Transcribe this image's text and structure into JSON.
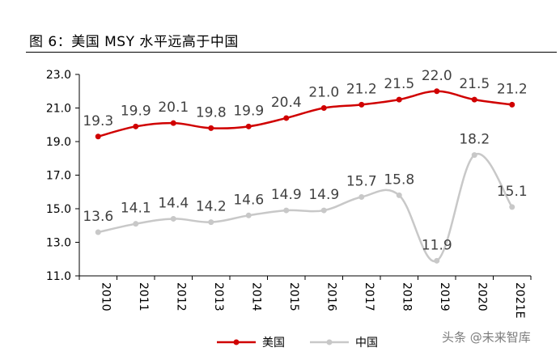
{
  "figure": {
    "title": "图 6：美国 MSY 水平远高于中国",
    "watermark": "头条 @未来智库"
  },
  "chart_data": {
    "type": "line",
    "title": "图 6：美国 MSY 水平远高于中国",
    "categories": [
      "2010",
      "2011",
      "2012",
      "2013",
      "2014",
      "2015",
      "2016",
      "2017",
      "2018",
      "2019",
      "2020",
      "2021E"
    ],
    "series": [
      {
        "name": "美国",
        "color": "#d00000",
        "values": [
          19.3,
          19.9,
          20.1,
          19.8,
          19.9,
          20.4,
          21.0,
          21.2,
          21.5,
          22.0,
          21.5,
          21.2
        ],
        "labels": [
          "19.3",
          "19.9",
          "20.1",
          "19.8",
          "19.9",
          "20.4",
          "21.0",
          "21.2",
          "21.5",
          "22.0",
          "21.5",
          "21.2"
        ]
      },
      {
        "name": "中国",
        "color": "#c8c8c8",
        "values": [
          13.6,
          14.1,
          14.4,
          14.2,
          14.6,
          14.9,
          14.9,
          15.7,
          15.8,
          11.9,
          18.2,
          15.1
        ],
        "labels": [
          "13.6",
          "14.1",
          "14.4",
          "14.2",
          "14.6",
          "14.9",
          "14.9",
          "15.7",
          "15.8",
          "11.9",
          "18.2",
          "15.1"
        ]
      }
    ],
    "yticks": [
      "11.0",
      "13.0",
      "15.0",
      "17.0",
      "19.0",
      "21.0",
      "23.0"
    ],
    "ylim": [
      11,
      23
    ],
    "grid": false,
    "legend_position": "bottom-center",
    "smooth": true
  }
}
